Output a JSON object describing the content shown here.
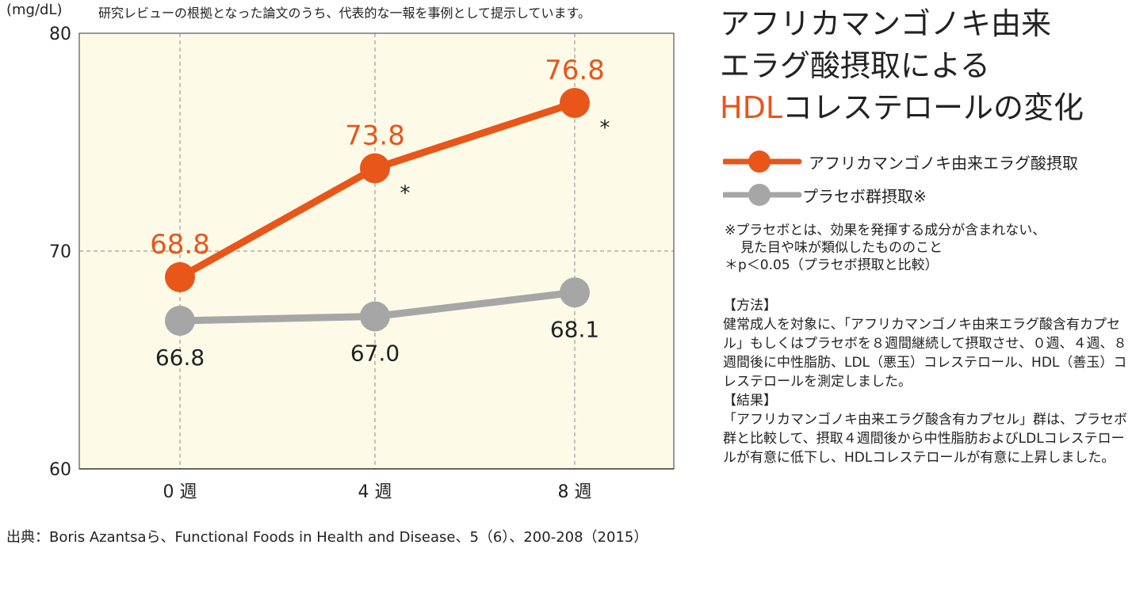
{
  "chart_data": {
    "type": "line",
    "unit_label": "(mg/dL)",
    "top_note": "研究レビューの根拠となった論文のうち、代表的な一報を事例として提示しています。",
    "categories": [
      "0 週",
      "4 週",
      "8 週"
    ],
    "ylim": [
      60,
      80
    ],
    "yticks": [
      "60",
      "70",
      "80"
    ],
    "grid": true,
    "series": [
      {
        "name": "アフリカマンゴノキ由来エラグ酸摂取",
        "color": "#e8561a",
        "values": [
          68.8,
          73.8,
          76.8
        ],
        "labels": [
          "68.8",
          "73.8",
          "76.8"
        ],
        "significance": [
          "",
          "*",
          "*"
        ]
      },
      {
        "name": "プラセボ群摂取※",
        "color": "#a6a6a6",
        "values": [
          66.8,
          67.0,
          68.1
        ],
        "labels": [
          "66.8",
          "67.0",
          "68.1"
        ]
      }
    ],
    "plot_bg": "#fdfbe8"
  },
  "title": {
    "line1": "アフリカマンゴノキ由来",
    "line2": "エラグ酸摂取による",
    "line3_highlight": "HDL",
    "line3_rest": "コレステロールの変化"
  },
  "notes": {
    "placebo_line1": "※プラセボとは、効果を発揮する成分が含まれない、",
    "placebo_line2": "見た目や味が類似したもののこと",
    "significance": "＊p＜0.05（プラセボ摂取と比較）"
  },
  "method": {
    "method_head": "【方法】",
    "method_text": "健常成人を対象に、「アフリカマンゴノキ由来エラグ酸含有カプセル」もしくはプラセボを８週間継続して摂取させ、０週、４週、８週間後に中性脂肪、LDL（悪玉）コレステロール、HDL（善玉）コレステロールを測定しました。",
    "result_head": "【結果】",
    "result_text": "「アフリカマンゴノキ由来エラグ酸含有カプセル」群は、プラセボ群と比較して、摂取４週間後から中性脂肪およびLDLコレステロールが有意に低下し、HDLコレステロールが有意に上昇しました。"
  },
  "source": "出典：Boris Azantsaら、Functional Foods in Health and Disease、5（6）、200-208（2015）"
}
